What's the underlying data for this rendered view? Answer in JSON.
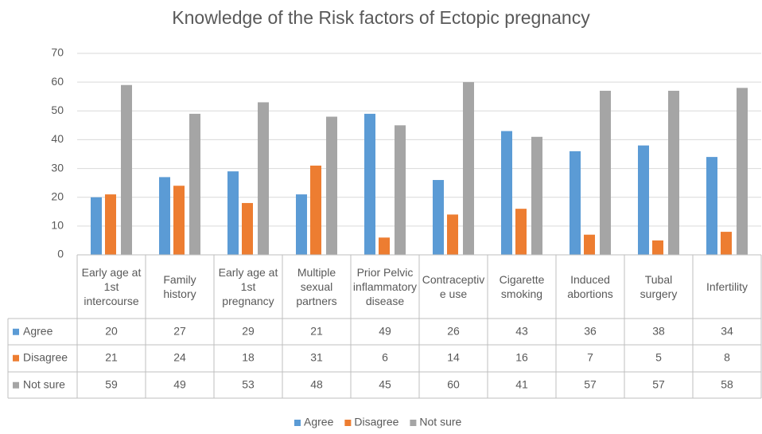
{
  "chart_data": {
    "type": "bar",
    "title": "Knowledge of the Risk factors of Ectopic pregnancy",
    "categories": [
      "Early age at 1st intercourse",
      "Family history",
      "Early age at 1st pregnancy",
      "Multiple sexual partners",
      "Prior Pelvic inflammatory disease",
      "Contraceptive use",
      "Cigarette smoking",
      "Induced abortions",
      "Tubal surgery",
      "Infertility"
    ],
    "series": [
      {
        "name": "Agree",
        "color": "#5b9bd5",
        "values": [
          20,
          27,
          29,
          21,
          49,
          26,
          43,
          36,
          38,
          34
        ]
      },
      {
        "name": "Disagree",
        "color": "#ed7d31",
        "values": [
          21,
          24,
          18,
          31,
          6,
          14,
          16,
          7,
          5,
          8
        ]
      },
      {
        "name": "Not sure",
        "color": "#a5a5a5",
        "values": [
          59,
          49,
          53,
          48,
          45,
          60,
          41,
          57,
          57,
          58
        ]
      }
    ],
    "ylim": [
      0,
      70
    ],
    "yticks": [
      0,
      10,
      20,
      30,
      40,
      50,
      60,
      70
    ],
    "grid": true,
    "legend": "bottom",
    "data_table": true
  }
}
